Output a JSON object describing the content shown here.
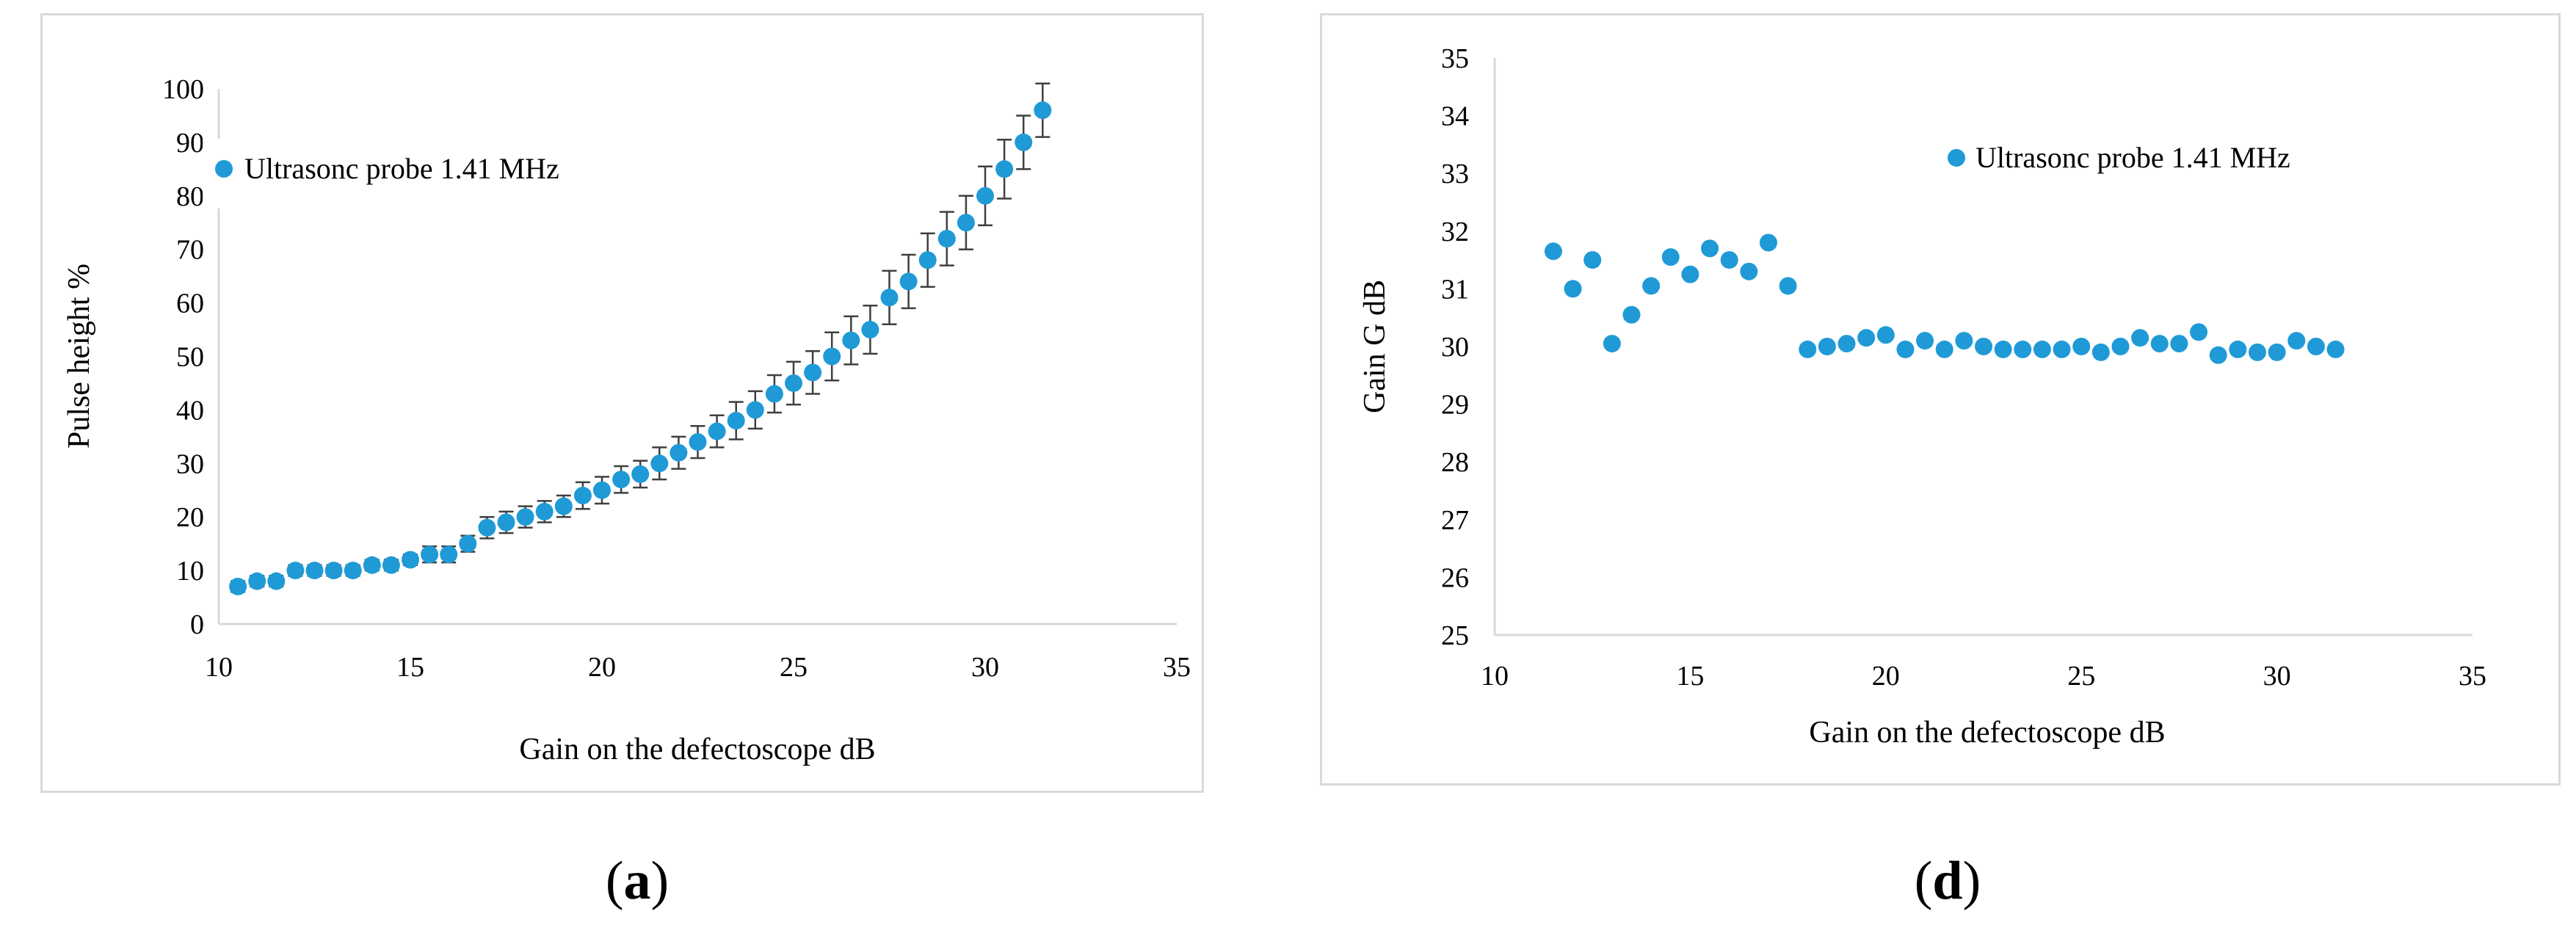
{
  "captions": {
    "a": {
      "open": "(",
      "letter": "a",
      "close": ")"
    },
    "d": {
      "open": "(",
      "letter": "d",
      "close": ")"
    }
  },
  "colors": {
    "series": "#1f9ad6",
    "axis": "#d9d9d9",
    "error_bar": "#3f3f3f",
    "text": "#000000"
  },
  "chart_data": [
    {
      "type": "scatter",
      "panel": "a",
      "title": "",
      "xlabel": "Gain on the defectoscope dB",
      "ylabel": "Pulse height %",
      "xlim": [
        10,
        35
      ],
      "ylim": [
        0,
        100
      ],
      "x_ticks": [
        10,
        15,
        20,
        25,
        30,
        35
      ],
      "y_ticks": [
        0,
        10,
        20,
        30,
        40,
        50,
        60,
        70,
        80,
        90,
        100
      ],
      "grid": false,
      "legend_position": "top-left",
      "error_bars": true,
      "series": [
        {
          "name": "Ultrasonc probe 1.41 MHz",
          "x": [
            10.5,
            11,
            11.5,
            12,
            12.5,
            13,
            13.5,
            14,
            14.5,
            15,
            15.5,
            16,
            16.5,
            17,
            17.5,
            18,
            18.5,
            19,
            19.5,
            20,
            20.5,
            21,
            21.5,
            22,
            22.5,
            23,
            23.5,
            24,
            24.5,
            25,
            25.5,
            26,
            26.5,
            27,
            27.5,
            28,
            28.5,
            29,
            29.5,
            30,
            30.5,
            31,
            31.5
          ],
          "y": [
            7,
            8,
            8,
            10,
            10,
            10,
            10,
            11,
            11,
            12,
            13,
            13,
            15,
            18,
            19,
            20,
            21,
            22,
            24,
            25,
            27,
            28,
            30,
            32,
            34,
            36,
            38,
            40,
            43,
            45,
            47,
            50,
            53,
            55,
            61,
            64,
            68,
            72,
            75,
            80,
            85,
            90,
            96
          ],
          "err": [
            1,
            1,
            1,
            1,
            1,
            1,
            1,
            1,
            1,
            1,
            1.5,
            1.5,
            1.5,
            2,
            2,
            2,
            2,
            2,
            2.5,
            2.5,
            2.5,
            2.5,
            3,
            3,
            3,
            3,
            3.5,
            3.5,
            3.5,
            4,
            4,
            4.5,
            4.5,
            4.5,
            5,
            5,
            5,
            5,
            5,
            5.5,
            5.5,
            5,
            5
          ]
        }
      ]
    },
    {
      "type": "scatter",
      "panel": "d",
      "title": "",
      "xlabel": "Gain on the defectoscope dB",
      "ylabel": "Gain G dB",
      "xlim": [
        10,
        35
      ],
      "ylim": [
        25,
        35
      ],
      "x_ticks": [
        10,
        15,
        20,
        25,
        30,
        35
      ],
      "y_ticks": [
        25,
        26,
        27,
        28,
        29,
        30,
        31,
        32,
        33,
        34,
        35
      ],
      "grid": false,
      "legend_position": "top-right",
      "error_bars": false,
      "series": [
        {
          "name": "Ultrasonc probe 1.41 MHz",
          "x": [
            11.5,
            12,
            12.5,
            13,
            13.5,
            14,
            14.5,
            15,
            15.5,
            16,
            16.5,
            17,
            17.5,
            18,
            18.5,
            19,
            19.5,
            20,
            20.5,
            21,
            21.5,
            22,
            22.5,
            23,
            23.5,
            24,
            24.5,
            25,
            25.5,
            26,
            26.5,
            27,
            27.5,
            28,
            28.5,
            29,
            29.5,
            30,
            30.5,
            31,
            31.5
          ],
          "y": [
            31.65,
            31.0,
            31.5,
            30.05,
            30.55,
            31.05,
            31.55,
            31.25,
            31.7,
            31.5,
            31.3,
            31.8,
            31.05,
            29.95,
            30.0,
            30.05,
            30.15,
            30.2,
            29.95,
            30.1,
            29.95,
            30.1,
            30.0,
            29.95,
            29.95,
            29.95,
            29.95,
            30.0,
            29.9,
            30.0,
            30.15,
            30.05,
            30.05,
            30.25,
            29.85,
            29.95,
            29.9,
            29.9,
            30.1,
            30.0,
            29.95
          ]
        }
      ]
    }
  ]
}
